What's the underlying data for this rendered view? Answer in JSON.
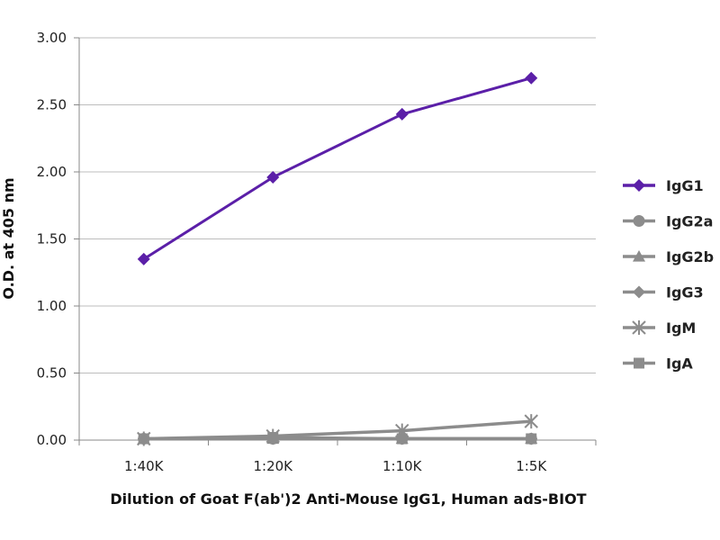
{
  "chart_data": {
    "type": "line",
    "categories": [
      "1:40K",
      "1:20K",
      "1:10K",
      "1:5K"
    ],
    "xlabel": "Dilution of Goat F(ab')2 Anti-Mouse IgG1, Human ads-BIOT",
    "ylabel": "O.D. at 405 nm",
    "ylim": [
      0,
      3
    ],
    "yticks": [
      "0.00",
      "0.50",
      "1.00",
      "1.50",
      "2.00",
      "2.50",
      "3.00"
    ],
    "grid": "horizontal",
    "legend_position": "right",
    "series": [
      {
        "name": "IgG1",
        "values": [
          1.35,
          1.96,
          2.43,
          2.7
        ],
        "color": "#5b1fa8",
        "marker": "diamond"
      },
      {
        "name": "IgG2a",
        "values": [
          0.01,
          0.01,
          0.01,
          0.01
        ],
        "color": "#8c8c8c",
        "marker": "circle"
      },
      {
        "name": "IgG2b",
        "values": [
          0.01,
          0.01,
          0.01,
          0.01
        ],
        "color": "#8c8c8c",
        "marker": "triangle"
      },
      {
        "name": "IgG3",
        "values": [
          0.01,
          0.01,
          0.01,
          0.01
        ],
        "color": "#8c8c8c",
        "marker": "diamond"
      },
      {
        "name": "IgM",
        "values": [
          0.01,
          0.03,
          0.07,
          0.14
        ],
        "color": "#8c8c8c",
        "marker": "star"
      },
      {
        "name": "IgA",
        "values": [
          0.01,
          0.02,
          0.01,
          0.01
        ],
        "color": "#8c8c8c",
        "marker": "square"
      }
    ]
  }
}
